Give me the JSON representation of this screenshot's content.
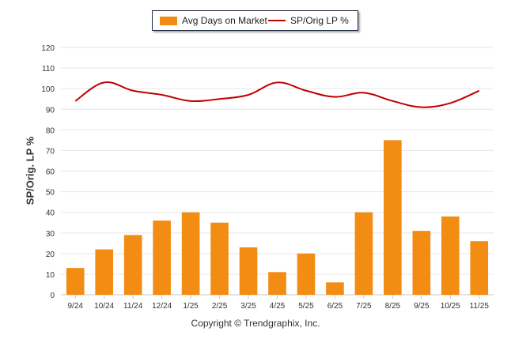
{
  "legend": {
    "bar_label": "Avg Days on Market",
    "line_label": "SP/Orig LP %"
  },
  "footer": "Copyright © Trendgraphix, Inc.",
  "colors": {
    "bar": "#f28c13",
    "line": "#c00000",
    "grid": "#e6e6e6"
  },
  "chart_data": {
    "type": "bar",
    "categories": [
      "9/24",
      "10/24",
      "11/24",
      "12/24",
      "1/25",
      "2/25",
      "3/25",
      "4/25",
      "5/25",
      "6/25",
      "7/25",
      "8/25",
      "9/25",
      "10/25",
      "11/25"
    ],
    "series": [
      {
        "name": "Avg Days on Market",
        "type": "bar",
        "values": [
          13,
          22,
          29,
          36,
          40,
          35,
          23,
          11,
          20,
          6,
          40,
          75,
          31,
          38,
          26
        ]
      },
      {
        "name": "SP/Orig LP %",
        "type": "line",
        "values": [
          94,
          103,
          99,
          97,
          94,
          95,
          97,
          103,
          99,
          96,
          98,
          94,
          91,
          93,
          99
        ]
      }
    ],
    "ylabel": "SP/Orig. LP %",
    "ylim": [
      0,
      120
    ],
    "yticks": [
      0,
      10,
      20,
      30,
      40,
      50,
      60,
      70,
      80,
      90,
      100,
      110,
      120
    ],
    "grid": true,
    "legend_position": "top-center"
  }
}
